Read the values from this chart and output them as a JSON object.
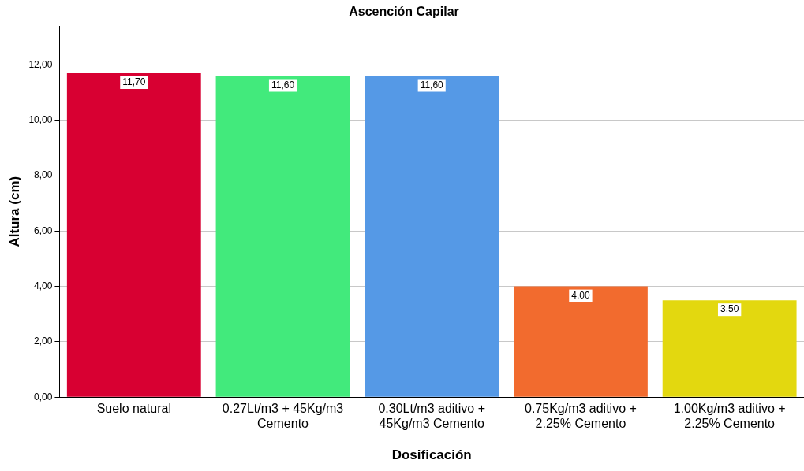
{
  "chart_data": {
    "type": "bar",
    "title": "Ascención Capilar",
    "xlabel": "Dosificación",
    "ylabel": "Altura (cm)",
    "categories": [
      "Suelo natural",
      "0.27Lt/m3 + 45Kg/m3 Cemento",
      "0.30Lt/m3 aditivo + 45Kg/m3 Cemento",
      "0.75Kg/m3 aditivo + 2.25% Cemento",
      "1.00Kg/m3 aditivo + 2.25% Cemento"
    ],
    "values": [
      11.7,
      11.6,
      11.6,
      4.0,
      3.5
    ],
    "colors": [
      "#d80032",
      "#42ea7c",
      "#5599e6",
      "#f26b2e",
      "#e3d80f"
    ],
    "value_labels": [
      "11,70",
      "11,60",
      "11,60",
      "4,00",
      "3,50"
    ],
    "ylim": [
      0,
      13.4
    ],
    "yticks": [
      {
        "value": 0,
        "label": "0,00"
      },
      {
        "value": 2,
        "label": "2,00"
      },
      {
        "value": 4,
        "label": "4,00"
      },
      {
        "value": 6,
        "label": "6,00"
      },
      {
        "value": 8,
        "label": "8,00"
      },
      {
        "value": 10,
        "label": "10,00"
      },
      {
        "value": 12,
        "label": "12,00"
      }
    ],
    "grid": "y"
  }
}
